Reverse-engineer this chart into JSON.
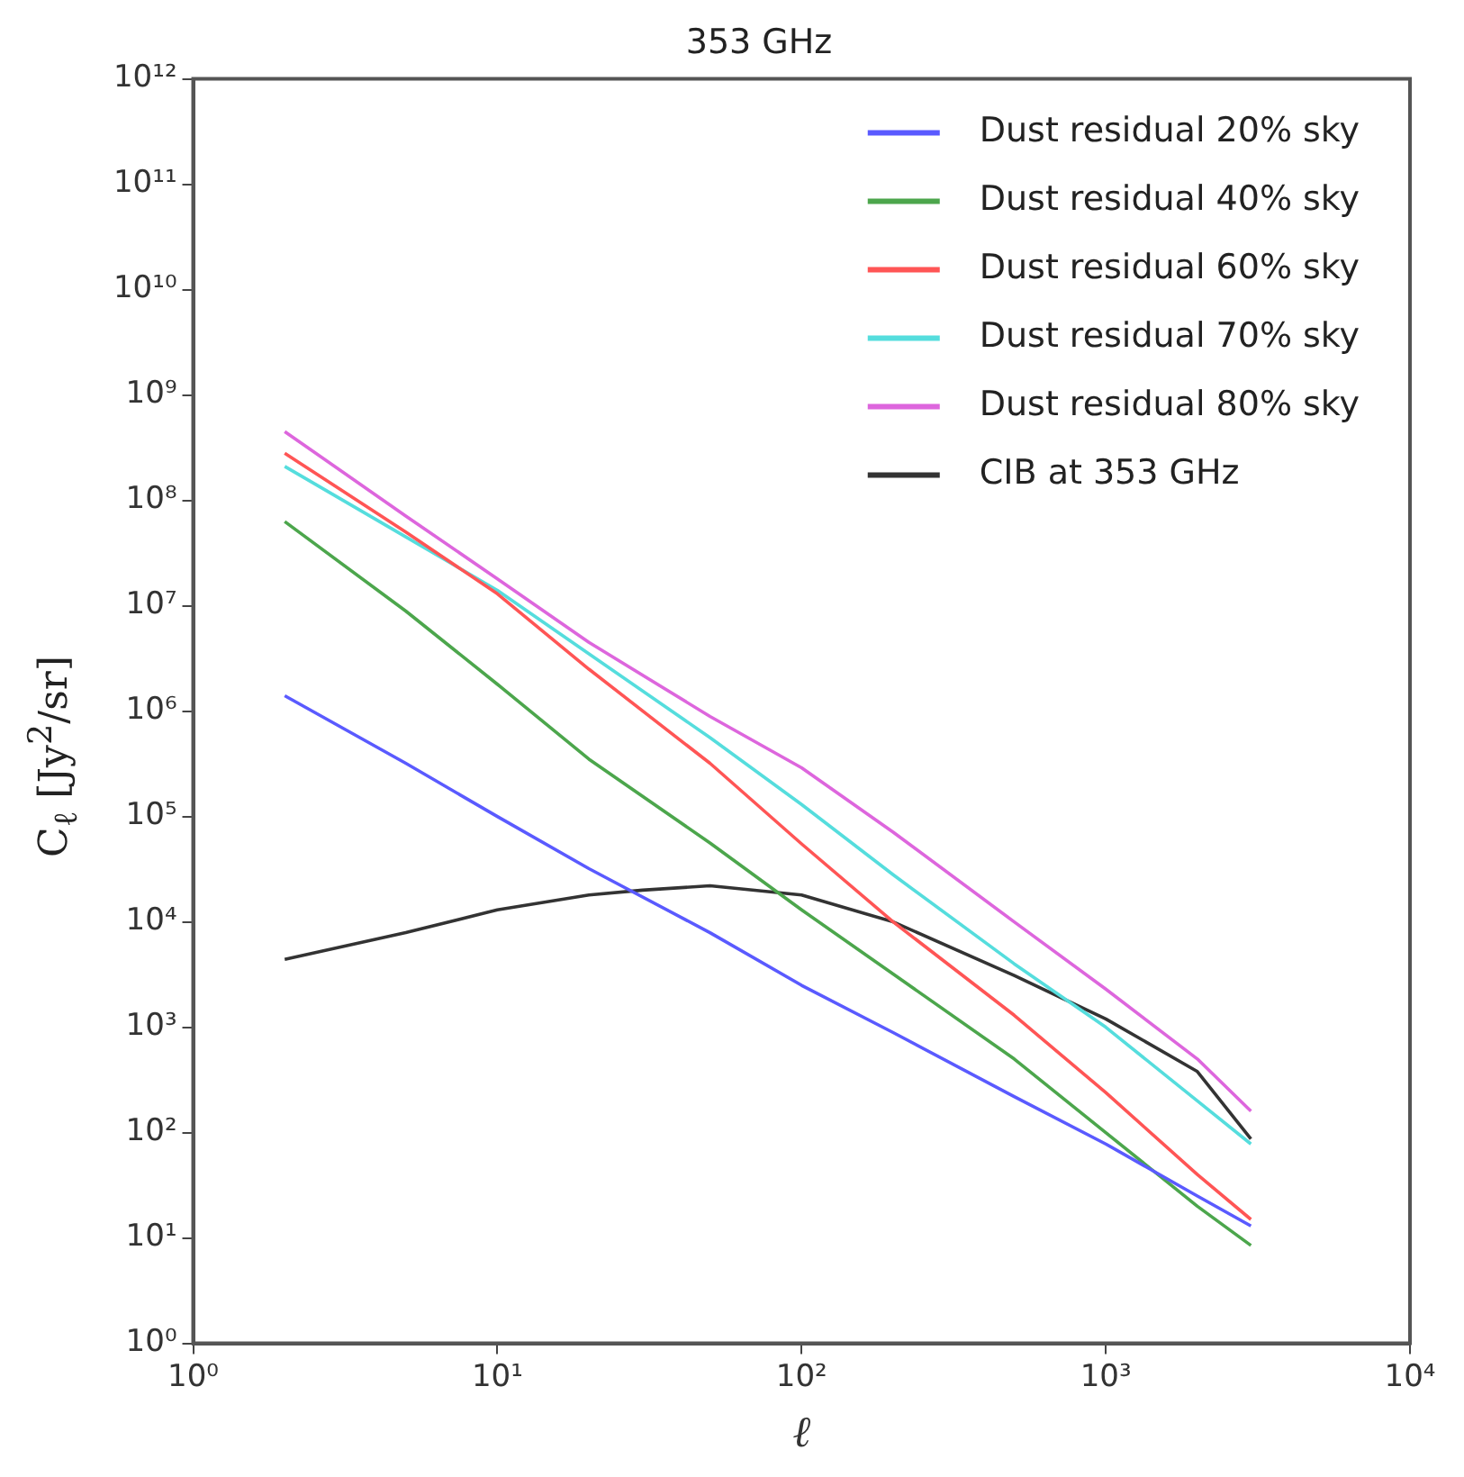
{
  "chart_data": {
    "type": "line",
    "title": "353 GHz",
    "xlabel": "ℓ",
    "ylabel": "C$_{ℓ}$ [Jy$^{2}$/sr]",
    "log": "xy",
    "grid": false,
    "legend": "top right",
    "marker": "none",
    "line_style": "solid",
    "xlim": [
      1,
      10000
    ],
    "xticks": [
      {
        "value": 1,
        "label": "10⁰"
      },
      {
        "value": 10,
        "label": "10¹"
      },
      {
        "value": 100,
        "label": "10²"
      },
      {
        "value": 1000,
        "label": "10³"
      },
      {
        "value": 10000,
        "label": "10⁴"
      }
    ],
    "ylim": [
      1,
      1000000000000
    ],
    "yticks": [
      {
        "value": 1,
        "label": "10⁰"
      },
      {
        "value": 10,
        "label": "10¹"
      },
      {
        "value": 100,
        "label": "10²"
      },
      {
        "value": 1000,
        "label": "10³"
      },
      {
        "value": 10000,
        "label": "10⁴"
      },
      {
        "value": 100000,
        "label": "10⁵"
      },
      {
        "value": 1000000,
        "label": "10⁶"
      },
      {
        "value": 10000000,
        "label": "10⁷"
      },
      {
        "value": 100000000,
        "label": "10⁸"
      },
      {
        "value": 1000000000,
        "label": "10⁹"
      },
      {
        "value": 10000000000,
        "label": "10¹⁰"
      },
      {
        "value": 100000000000,
        "label": "10¹¹"
      },
      {
        "value": 1000000000000,
        "label": "10¹²"
      }
    ],
    "x": [
      2,
      5,
      10,
      20,
      50,
      100,
      200,
      500,
      1000,
      2000,
      3000
    ],
    "series": [
      {
        "name": "Dust residual 20% sky",
        "color": "#5a5aff",
        "values": [
          1400000,
          320000,
          100000,
          32000,
          7900,
          2500,
          890,
          220,
          78,
          25,
          13
        ]
      },
      {
        "name": "Dust residual 40% sky",
        "color": "#4ca64c",
        "values": [
          63000000,
          8900000,
          1800000,
          350000,
          56000,
          13000,
          3200,
          500,
          100,
          20,
          8.5
        ]
      },
      {
        "name": "Dust residual 60% sky",
        "color": "#ff5555",
        "values": [
          280000000,
          50000000,
          13000000,
          2500000,
          320000,
          55000,
          10000,
          1300,
          240,
          40,
          15
        ]
      },
      {
        "name": "Dust residual 70% sky",
        "color": "#55dddd",
        "values": [
          210000000,
          45000000,
          14000000,
          3500000,
          560000,
          130000,
          28000,
          4000,
          1000,
          200,
          78
        ]
      },
      {
        "name": "Dust residual 80% sky",
        "color": "#dd66dd",
        "values": [
          450000000,
          71000000,
          18000000,
          4500000,
          890000,
          290000,
          71000,
          10000,
          2300,
          500,
          160
        ]
      },
      {
        "name": "CIB at 353 GHz",
        "color": "#333333",
        "x": [
          2,
          5,
          10,
          20,
          30,
          50,
          100,
          200,
          500,
          1000,
          2000,
          3000
        ],
        "values": [
          4400,
          7900,
          13000,
          18000,
          20000,
          22000,
          18000,
          10000,
          3100,
          1200,
          380,
          87
        ]
      }
    ]
  }
}
